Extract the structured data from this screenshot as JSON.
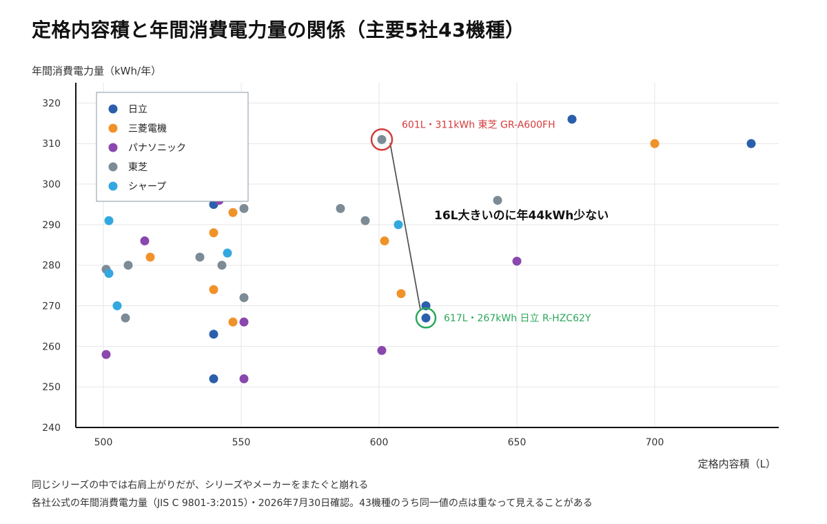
{
  "title": "定格内容積と年間消費電力量の関係（主要5社43機種）",
  "colors": {
    "hitachi": "#2b5fac",
    "mitsubishi": "#f0922a",
    "panasonic": "#8a47ad",
    "toshiba": "#7c8b95",
    "sharp": "#33a8e0",
    "highlight_bad": "#d43a3a",
    "highlight_good": "#2aa75a"
  },
  "chart_data": {
    "type": "scatter",
    "xlabel": "定格内容積（L）",
    "ylabel": "年間消費電力量（kWh/年）",
    "xlim": [
      490,
      745
    ],
    "ylim": [
      240,
      325
    ],
    "xticks": [
      500,
      550,
      600,
      650,
      700
    ],
    "yticks": [
      240,
      250,
      260,
      270,
      280,
      290,
      300,
      310,
      320
    ],
    "grid": true,
    "legend_position": "top-left",
    "series": [
      {
        "name": "日立",
        "color_key": "hitachi",
        "x": [
          540,
          540,
          540,
          617,
          617,
          670,
          735
        ],
        "y": [
          295,
          263,
          252,
          270,
          267,
          316,
          310
        ]
      },
      {
        "name": "三菱電機",
        "color_key": "mitsubishi",
        "x": [
          517,
          540,
          540,
          547,
          547,
          602,
          608,
          700
        ],
        "y": [
          282,
          288,
          274,
          293,
          266,
          286,
          273,
          310
        ]
      },
      {
        "name": "パナソニック",
        "color_key": "panasonic",
        "x": [
          501,
          515,
          542,
          551,
          551,
          601,
          650
        ],
        "y": [
          258,
          286,
          296,
          266,
          252,
          259,
          281
        ]
      },
      {
        "name": "東芝",
        "color_key": "toshiba",
        "x": [
          501,
          508,
          509,
          535,
          543,
          551,
          551,
          586,
          595,
          601,
          643
        ],
        "y": [
          279,
          267,
          280,
          282,
          280,
          294,
          272,
          294,
          291,
          311,
          296
        ]
      },
      {
        "name": "シャープ",
        "color_key": "sharp",
        "x": [
          502,
          502,
          505,
          545,
          607
        ],
        "y": [
          291,
          278,
          270,
          283,
          290
        ]
      }
    ],
    "annotations": {
      "bad": {
        "x": 601,
        "y": 311,
        "label": "601L・311kWh 東芝 GR-A600FH"
      },
      "good": {
        "x": 617,
        "y": 267,
        "label": "617L・267kWh 日立 R-HZC62Y"
      },
      "connector_label": "16L大きいのに年44kWh少ない"
    }
  },
  "footnotes": {
    "line1": "同じシリーズの中では右肩上がりだが、シリーズやメーカーをまたぐと崩れる",
    "line2": "各社公式の年間消費電力量（JIS C 9801-3:2015）・2026年7月30日確認。43機種のうち同一値の点は重なって見えることがある"
  }
}
